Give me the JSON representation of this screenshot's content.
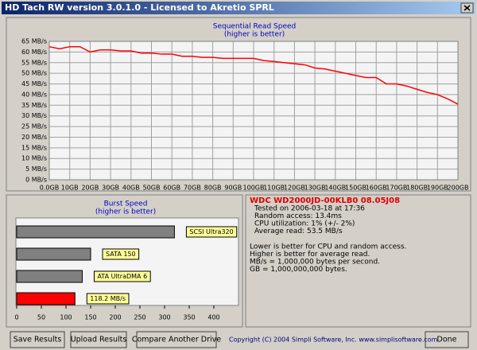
{
  "window": {
    "title": "HD Tach RW version 3.0.1.0 - Licensed to Akretio SPRL"
  },
  "chart_data": [
    {
      "type": "line",
      "title": "Sequential Read Speed",
      "subtitle": "(higher is better)",
      "x": [
        0,
        5,
        10,
        15,
        20,
        25,
        30,
        35,
        40,
        45,
        50,
        55,
        60,
        65,
        70,
        75,
        80,
        85,
        90,
        95,
        100,
        105,
        110,
        115,
        120,
        125,
        130,
        135,
        140,
        145,
        150,
        155,
        160,
        165,
        170,
        175,
        180,
        185,
        190,
        195,
        200
      ],
      "values": [
        62.5,
        61.5,
        62.5,
        62.5,
        60,
        61,
        61,
        60.5,
        60.5,
        59.5,
        59.5,
        59,
        59,
        58,
        58,
        57.5,
        57.5,
        57,
        57,
        57,
        57,
        56,
        55.5,
        55,
        54.5,
        54,
        52.5,
        52,
        51,
        50,
        49,
        48,
        48,
        45,
        45,
        44,
        42.5,
        41,
        40,
        38,
        35.5
      ],
      "color": "#ff0000",
      "xlim": [
        0,
        200
      ],
      "ylim": [
        0,
        65
      ],
      "xticks": [
        {
          "value": 0,
          "label": "0.0GB"
        },
        {
          "value": 10,
          "label": "10GB"
        },
        {
          "value": 20,
          "label": "20GB"
        },
        {
          "value": 30,
          "label": "30GB"
        },
        {
          "value": 40,
          "label": "40GB"
        },
        {
          "value": 50,
          "label": "50GB"
        },
        {
          "value": 60,
          "label": "60GB"
        },
        {
          "value": 70,
          "label": "70GB"
        },
        {
          "value": 80,
          "label": "80GB"
        },
        {
          "value": 90,
          "label": "90GB"
        },
        {
          "value": 100,
          "label": "100GB"
        },
        {
          "value": 110,
          "label": "110GB"
        },
        {
          "value": 120,
          "label": "120GB"
        },
        {
          "value": 130,
          "label": "130GB"
        },
        {
          "value": 140,
          "label": "140GB"
        },
        {
          "value": 150,
          "label": "150GB"
        },
        {
          "value": 160,
          "label": "160GB"
        },
        {
          "value": 170,
          "label": "170GB"
        },
        {
          "value": 180,
          "label": "180GB"
        },
        {
          "value": 190,
          "label": "190GB"
        },
        {
          "value": 200,
          "label": "200GB"
        }
      ],
      "yticks": [
        {
          "value": 0,
          "label": "0 MB/s"
        },
        {
          "value": 5,
          "label": "5 MB/s"
        },
        {
          "value": 10,
          "label": "10 MB/s"
        },
        {
          "value": 15,
          "label": "15 MB/s"
        },
        {
          "value": 20,
          "label": "20 MB/s"
        },
        {
          "value": 25,
          "label": "25 MB/s"
        },
        {
          "value": 30,
          "label": "30 MB/s"
        },
        {
          "value": 35,
          "label": "35 MB/s"
        },
        {
          "value": 40,
          "label": "40 MB/s"
        },
        {
          "value": 45,
          "label": "45 MB/s"
        },
        {
          "value": 50,
          "label": "50 MB/s"
        },
        {
          "value": 55,
          "label": "55 MB/s"
        },
        {
          "value": 60,
          "label": "60 MB/s"
        },
        {
          "value": 65,
          "label": "65 MB/s"
        }
      ],
      "grid": true
    },
    {
      "type": "hbar",
      "title": "Burst Speed",
      "subtitle": "(higher is better)",
      "categories": [
        "SCSI Ultra320",
        "SATA 150",
        "ATA UltraDMA 6",
        null
      ],
      "values": [
        320,
        150,
        133,
        118.2
      ],
      "value_labels": [
        null,
        null,
        null,
        "118.2 MB/s"
      ],
      "colors": [
        "#808080",
        "#808080",
        "#808080",
        "#ff0000"
      ],
      "xlim": [
        0,
        450
      ],
      "xticks": [
        0,
        50,
        100,
        150,
        200,
        250,
        300,
        350,
        400
      ]
    }
  ],
  "info": {
    "drive": "WDC WD2000JD-00KLB0 08.05J08",
    "lines": [
      "Tested on 2006-03-18 at 17:36",
      "Random access: 13.4ms",
      "CPU utilization: 1% (+/- 2%)",
      "Average read: 53.5 MB/s"
    ],
    "notes": [
      "Lower is better for CPU and random access.",
      "Higher is better for average read.",
      "MB/s = 1,000,000 bytes per second.",
      "GB = 1,000,000,000 bytes."
    ]
  },
  "buttons": [
    "Save Results",
    "Upload Results",
    "Compare Another Drive",
    "Done"
  ],
  "copyright": "Copyright (C) 2004 Simpli Software, Inc. www.simplisoftware.com"
}
